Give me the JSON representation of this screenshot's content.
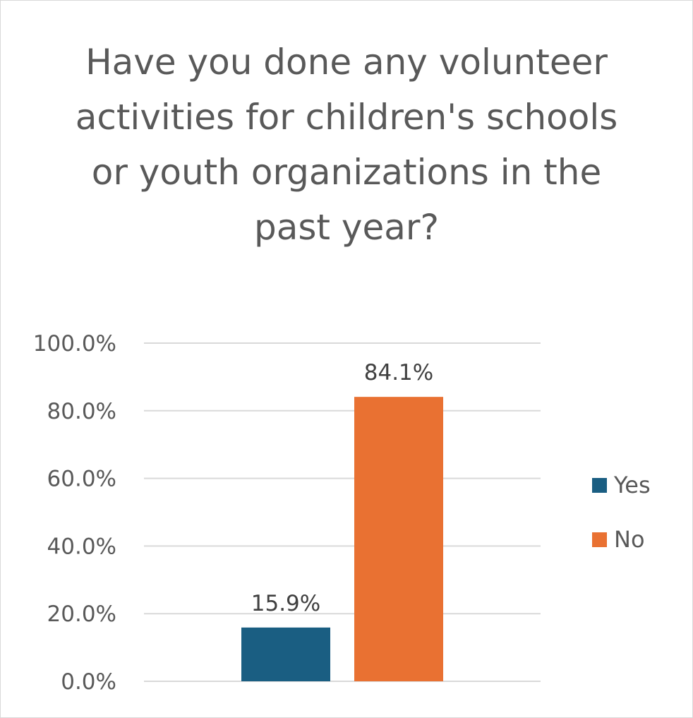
{
  "chart_data": {
    "type": "bar",
    "title": "Have you done any volunteer activities for children's schools or youth organizations in the past year?",
    "categories": [
      ""
    ],
    "series": [
      {
        "name": "Yes",
        "values": [
          15.9
        ],
        "color": "#1a5e82",
        "label": "15.9%"
      },
      {
        "name": "No",
        "values": [
          84.1
        ],
        "color": "#e97132",
        "label": "84.1%"
      }
    ],
    "ylim": [
      0,
      100
    ],
    "yticks": [
      "0.0%",
      "20.0%",
      "40.0%",
      "60.0%",
      "80.0%",
      "100.0%"
    ],
    "ytick_values": [
      0,
      20,
      40,
      60,
      80,
      100
    ],
    "xlabel": "",
    "ylabel": "",
    "grid": true,
    "legend_position": "right"
  }
}
